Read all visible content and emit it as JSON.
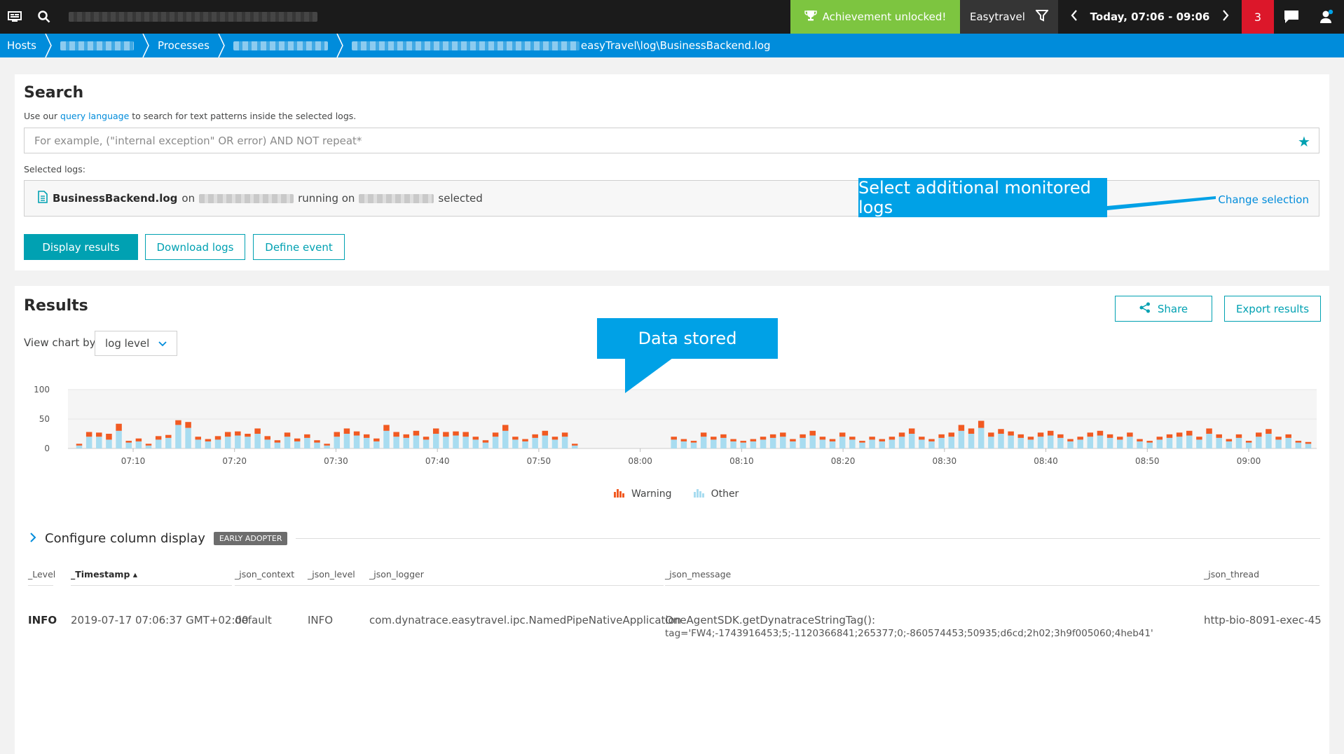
{
  "topbar": {
    "achievement_label": "Achievement unlocked!",
    "environment_label": "Easytravel",
    "timeframe_label": "Today, 07:06 - 09:06",
    "problems_count": "3"
  },
  "breadcrumb": {
    "items": [
      "Hosts",
      "Processes"
    ],
    "current_suffix": "easyTravel\\log\\BusinessBackend.log"
  },
  "search": {
    "title": "Search",
    "help_prefix": "Use our ",
    "help_link": "query language",
    "help_suffix": " to search for text patterns inside the selected logs.",
    "placeholder": "For example, (\"internal exception\" OR error) AND NOT repeat*",
    "selected_logs_label": "Selected logs:",
    "selected_file": "BusinessBackend.log",
    "on_label": "on",
    "running_on_label": "running on",
    "selected_label": "selected",
    "change_selection": "Change selection",
    "buttons": {
      "display": "Display results",
      "download": "Download logs",
      "define_event": "Define event"
    }
  },
  "results": {
    "title": "Results",
    "share": "Share",
    "export": "Export results",
    "view_chart_by": "View chart by",
    "view_chart_by_value": "log level",
    "configure_columns": "Configure column display",
    "early_adopter": "EARLY ADOPTER",
    "columns": [
      "_Level",
      "_Timestamp",
      "_json_context",
      "_json_level",
      "_json_logger",
      "_json_message",
      "_json_thread"
    ],
    "rows": [
      {
        "level": "INFO",
        "timestamp": "2019-07-17 07:06:37 GMT+02:00",
        "context": "default",
        "json_level": "INFO",
        "logger": "com.dynatrace.easytravel.ipc.NamedPipeNativeApplication",
        "message_line1": "OneAgentSDK.getDynatraceStringTag():",
        "message_line2": "tag='FW4;-1743916453;5;-1120366841;265377;0;-860574453;50935;d6cd;2h02;3h9f005060;4heb41'",
        "thread": "http-bio-8091-exec-45"
      }
    ]
  },
  "callouts": {
    "additional_logs": "Select additional monitored logs",
    "data_stored": "Data stored"
  },
  "chart_data": {
    "type": "bar",
    "stacked": true,
    "x_tick_labels": [
      "07:10",
      "07:20",
      "07:30",
      "07:40",
      "07:50",
      "08:00",
      "08:10",
      "08:20",
      "08:30",
      "08:40",
      "08:50",
      "09:00"
    ],
    "y_ticks": [
      0,
      50,
      100
    ],
    "ylim": [
      0,
      100
    ],
    "legend": [
      "Warning",
      "Other"
    ],
    "colors": {
      "warning": "#f15a22",
      "other": "#a8dcf0"
    },
    "series": [
      {
        "name": "Other",
        "values": [
          5,
          20,
          20,
          15,
          30,
          10,
          12,
          5,
          15,
          18,
          40,
          35,
          15,
          12,
          15,
          20,
          22,
          20,
          25,
          15,
          10,
          20,
          12,
          18,
          10,
          5,
          20,
          25,
          22,
          18,
          12,
          30,
          20,
          18,
          22,
          15,
          25,
          20,
          22,
          20,
          15,
          10,
          20,
          30,
          15,
          12,
          18,
          22,
          15,
          20,
          5,
          0,
          0,
          0,
          0,
          0,
          0,
          0,
          0,
          0,
          15,
          12,
          10,
          20,
          15,
          18,
          12,
          10,
          12,
          15,
          18,
          20,
          12,
          18,
          22,
          15,
          12,
          20,
          15,
          10,
          15,
          12,
          15,
          20,
          25,
          15,
          12,
          18,
          20,
          30,
          25,
          35,
          20,
          25,
          22,
          18,
          15,
          20,
          22,
          18,
          12,
          15,
          20,
          22,
          18,
          15,
          20,
          12,
          10,
          15,
          18,
          20,
          22,
          15,
          25,
          18,
          12,
          18,
          10,
          20,
          25,
          15,
          18,
          10,
          8
        ]
      },
      {
        "name": "Warning",
        "values": [
          3,
          8,
          7,
          10,
          12,
          3,
          5,
          3,
          6,
          5,
          8,
          10,
          5,
          4,
          6,
          8,
          7,
          5,
          9,
          6,
          4,
          7,
          5,
          6,
          4,
          3,
          8,
          9,
          7,
          6,
          5,
          10,
          8,
          6,
          8,
          5,
          9,
          8,
          7,
          8,
          5,
          4,
          7,
          10,
          5,
          4,
          6,
          8,
          5,
          7,
          3,
          0,
          0,
          0,
          0,
          0,
          0,
          0,
          0,
          0,
          5,
          4,
          3,
          7,
          5,
          6,
          4,
          3,
          4,
          5,
          6,
          7,
          4,
          6,
          8,
          5,
          4,
          7,
          5,
          3,
          5,
          4,
          5,
          7,
          9,
          5,
          4,
          6,
          7,
          10,
          9,
          12,
          7,
          8,
          7,
          6,
          5,
          7,
          8,
          6,
          4,
          5,
          7,
          8,
          6,
          5,
          7,
          4,
          3,
          5,
          6,
          7,
          8,
          5,
          9,
          6,
          4,
          6,
          3,
          7,
          8,
          5,
          6,
          3,
          3
        ]
      }
    ]
  }
}
